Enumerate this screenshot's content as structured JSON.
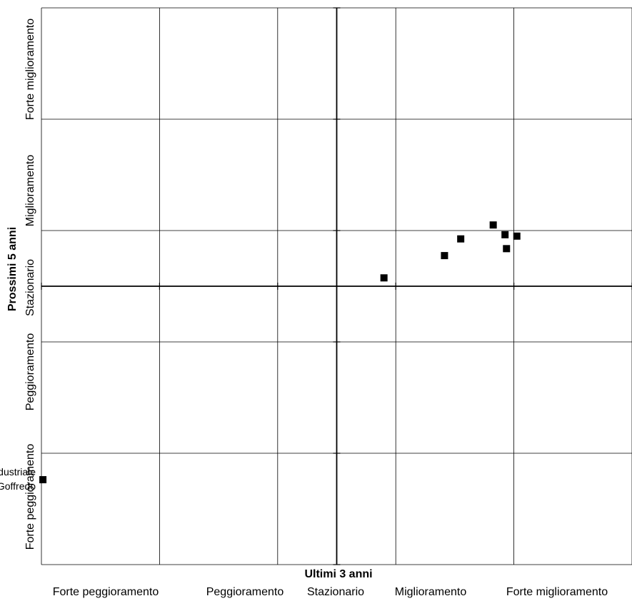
{
  "chart_data": {
    "type": "scatter",
    "xlabel": "Ultimi 3 anni",
    "ylabel": "Prossimi 5 anni",
    "xlim": [
      -2,
      2
    ],
    "ylim": [
      -2,
      2
    ],
    "x_categories": [
      "Forte peggioramento",
      "Peggioramento",
      "Stazionario",
      "Miglioramento",
      "Forte miglioramento"
    ],
    "y_categories": [
      "Forte peggioramento",
      "Peggioramento",
      "Stazionario",
      "Miglioramento",
      "Forte miglioramento"
    ],
    "grid": true,
    "points": [
      {
        "x": 0.32,
        "y": 0.06
      },
      {
        "x": 0.73,
        "y": 0.22
      },
      {
        "x": 0.84,
        "y": 0.34
      },
      {
        "x": 1.06,
        "y": 0.44
      },
      {
        "x": 1.14,
        "y": 0.37
      },
      {
        "x": 1.22,
        "y": 0.36
      },
      {
        "x": 1.15,
        "y": 0.27
      },
      {
        "x": -1.99,
        "y": -1.39
      }
    ],
    "annotations": [
      {
        "text_lines": [
          "Distretto industriale",
          "di Castel Goffredo"
        ],
        "point_index": 7
      }
    ]
  }
}
